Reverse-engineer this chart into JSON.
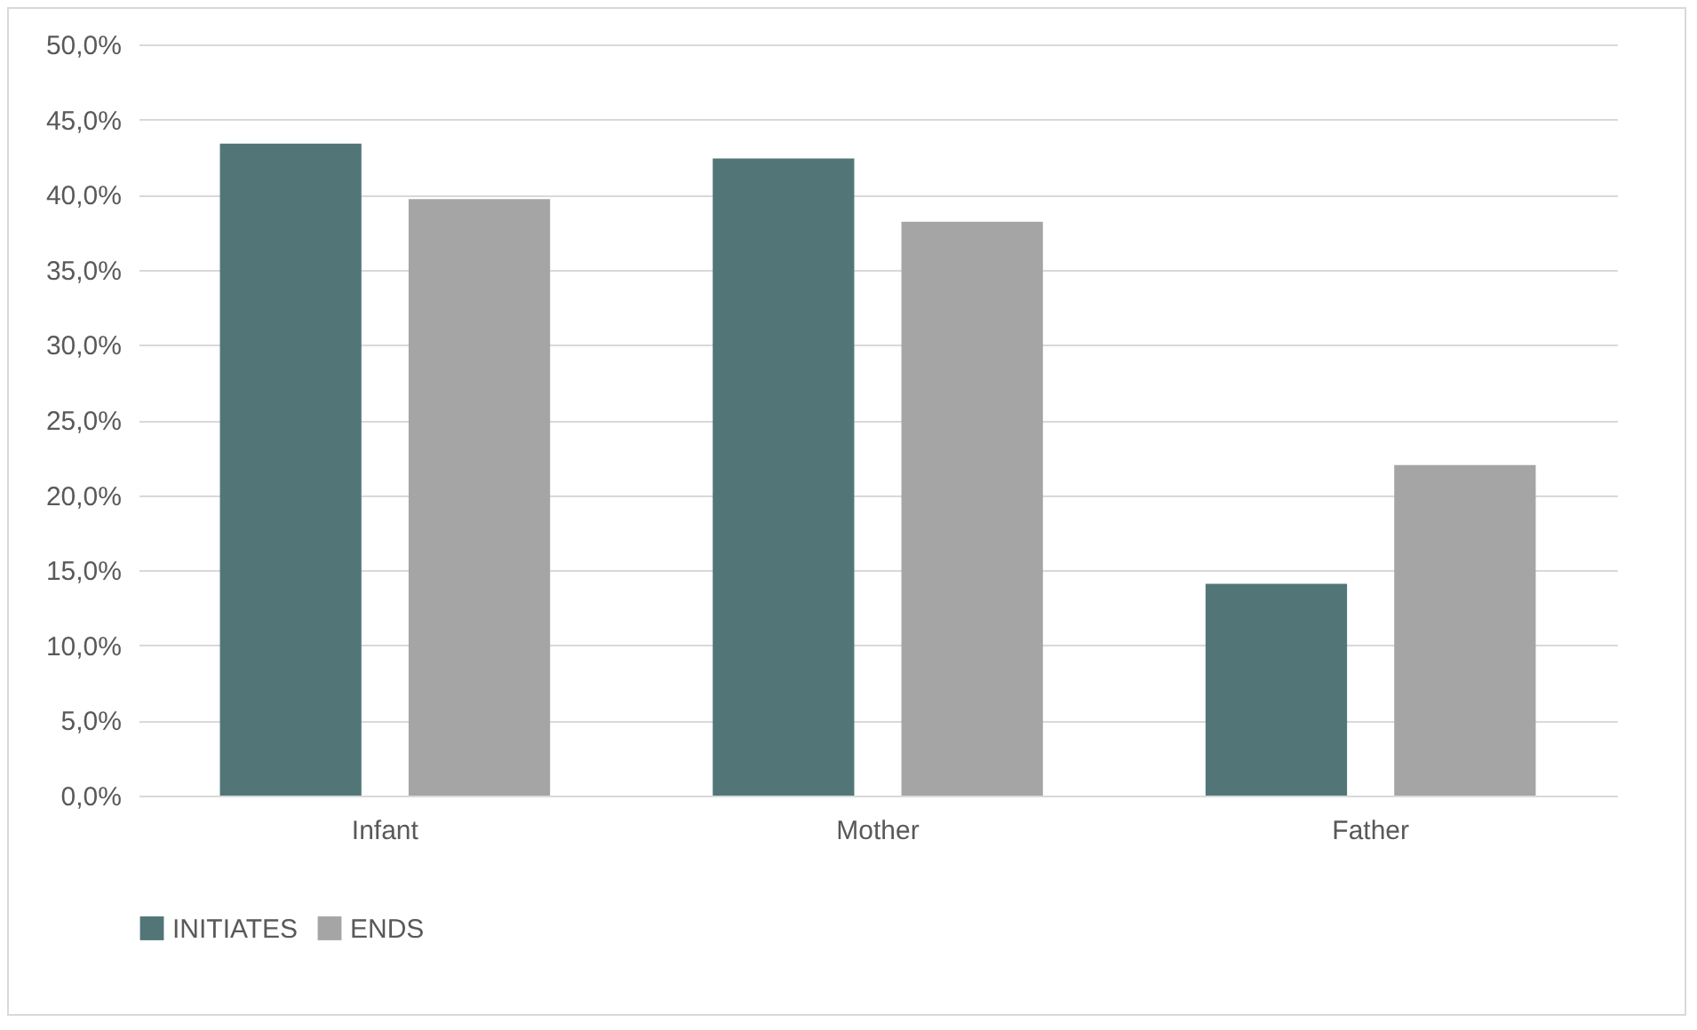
{
  "chart_data": {
    "type": "bar",
    "categories": [
      "Infant",
      "Mother",
      "Father"
    ],
    "series": [
      {
        "name": "INITIATES",
        "color": "#527678",
        "values": [
          43.4,
          42.4,
          14.1
        ]
      },
      {
        "name": "ENDS",
        "color": "#a5a5a5",
        "values": [
          39.7,
          38.2,
          22.0
        ]
      }
    ],
    "ylim": [
      0,
      50
    ],
    "yticks": [
      {
        "value": 0,
        "label": "0,0%"
      },
      {
        "value": 5,
        "label": "5,0%"
      },
      {
        "value": 10,
        "label": "10,0%"
      },
      {
        "value": 15,
        "label": "15,0%"
      },
      {
        "value": 20,
        "label": "20,0%"
      },
      {
        "value": 25,
        "label": "25,0%"
      },
      {
        "value": 30,
        "label": "30,0%"
      },
      {
        "value": 35,
        "label": "35,0%"
      },
      {
        "value": 40,
        "label": "40,0%"
      },
      {
        "value": 45,
        "label": "45,0%"
      },
      {
        "value": 50,
        "label": "50,0%"
      }
    ],
    "grid": "y",
    "legend": "bottom"
  }
}
